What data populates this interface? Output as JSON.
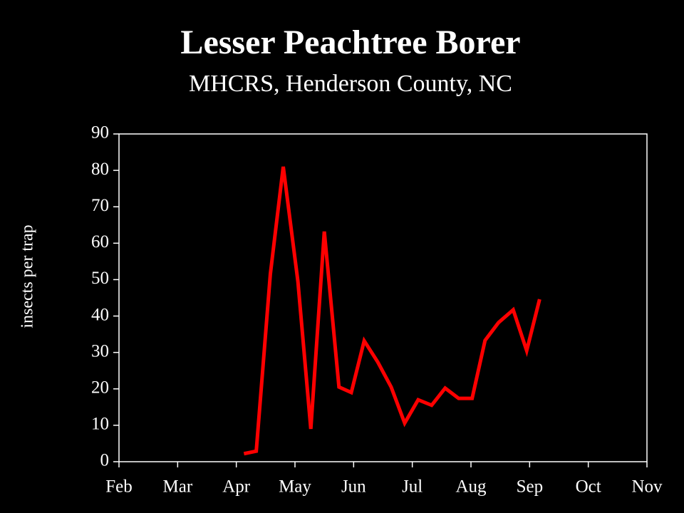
{
  "chart_data": {
    "type": "line",
    "title": "Lesser Peachtree Borer",
    "subtitle": "MHCRS, Henderson County, NC",
    "y_label": "insects per trap",
    "x": [
      4.13,
      4.34,
      4.58,
      4.8,
      5.05,
      5.27,
      5.5,
      5.75,
      5.96,
      6.18,
      6.41,
      6.64,
      6.87,
      7.1,
      7.33,
      7.56,
      7.79,
      8.02,
      8.24,
      8.47,
      8.72,
      8.95,
      9.17
    ],
    "values": [
      2.2,
      2.9,
      51.5,
      81,
      49.5,
      9,
      63.2,
      20.5,
      19,
      33.2,
      27.4,
      20.5,
      10.6,
      17,
      15.5,
      20.2,
      17.4,
      17.4,
      33.3,
      38.2,
      41.7,
      30.5,
      44.6
    ],
    "color": "#ff0000",
    "xlim": [
      2,
      11
    ],
    "xticks": [
      {
        "value": 2,
        "label": "Feb"
      },
      {
        "value": 3,
        "label": "Mar"
      },
      {
        "value": 4,
        "label": "Apr"
      },
      {
        "value": 5,
        "label": "May"
      },
      {
        "value": 6,
        "label": "Jun"
      },
      {
        "value": 7,
        "label": "Jul"
      },
      {
        "value": 8,
        "label": "Aug"
      },
      {
        "value": 9,
        "label": "Sep"
      },
      {
        "value": 10,
        "label": "Oct"
      },
      {
        "value": 11,
        "label": "Nov"
      }
    ],
    "ylim": [
      0,
      90
    ],
    "yticks": [
      0,
      10,
      20,
      30,
      40,
      50,
      60,
      70,
      80,
      90
    ]
  }
}
